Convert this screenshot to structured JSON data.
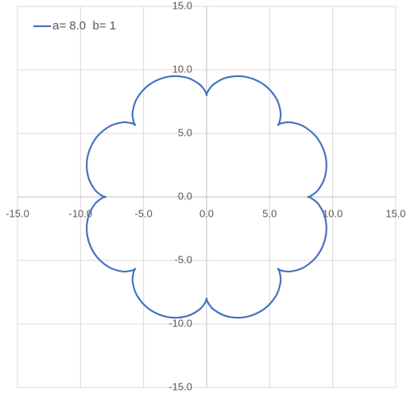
{
  "chart_data": {
    "type": "scatter-line",
    "series": [
      {
        "name": "a= 8.0  b= 1",
        "color": "#4472c4",
        "x": [
          8,
          8.2586,
          8.8633,
          9.4004,
          9.4572,
          8.8639,
          7.7942,
          6.6653,
          5.8944,
          5.6569,
          5.7851,
          5.8693,
          5.5,
          4.5107,
          3.0782,
          1.6223,
          0.5628,
          0.0773,
          0,
          -0.0773,
          -0.5628,
          -1.6223,
          -3.0782,
          -4.5107,
          -5.5,
          -5.8693,
          -5.7851,
          -5.6569,
          -5.8944,
          -6.6653,
          -7.7942,
          -8.8639,
          -9.4572,
          -9.4004,
          -8.8633,
          -8.2586,
          -8,
          -8.2586,
          -8.8633,
          -9.4004,
          -9.4572,
          -8.8639,
          -7.7942,
          -6.6653,
          -5.8944,
          -5.6569,
          -5.7851,
          -5.8693,
          -5.5,
          -4.5107,
          -3.0782,
          -1.6223,
          -0.5628,
          -0.0773,
          0,
          0.0773,
          0.5628,
          1.6223,
          3.0782,
          4.5107,
          5.5,
          5.8693,
          5.7851,
          5.6569,
          5.8944,
          6.6653,
          7.7942,
          8.8639,
          9.4572,
          9.4004,
          8.8633,
          8.2586,
          8
        ],
        "values": [
          0,
          0.0773,
          0.5628,
          1.6223,
          3.0782,
          4.5107,
          5.5,
          5.8693,
          5.7851,
          5.6569,
          5.8944,
          6.6653,
          7.7942,
          8.8639,
          9.4572,
          9.4004,
          8.8633,
          8.2586,
          8,
          8.2586,
          8.8633,
          9.4004,
          9.4572,
          8.8639,
          7.7942,
          6.6653,
          5.8944,
          5.6569,
          5.7851,
          5.8693,
          5.5,
          4.5107,
          3.0782,
          1.6223,
          0.5628,
          0.0773,
          0,
          -0.0773,
          -0.5628,
          -1.6223,
          -3.0782,
          -4.5107,
          -5.5,
          -5.8693,
          -5.7851,
          -5.6569,
          -5.8944,
          -6.6653,
          -7.7942,
          -8.8639,
          -9.4572,
          -9.4004,
          -8.8633,
          -8.2586,
          -8,
          -8.2586,
          -8.8633,
          -9.4004,
          -9.4572,
          -8.8639,
          -7.7942,
          -6.6653,
          -5.8944,
          -5.6569,
          -5.7851,
          -5.8693,
          -5.5,
          -4.5107,
          -3.0782,
          -1.6223,
          -0.5628,
          -0.0773,
          0
        ]
      }
    ],
    "xlim": [
      -15,
      15
    ],
    "ylim": [
      -15,
      15
    ],
    "xticks": [
      {
        "value": -15,
        "label": "-15.0"
      },
      {
        "value": -10,
        "label": "-10.0"
      },
      {
        "value": -5,
        "label": "-5.0"
      },
      {
        "value": 0,
        "label": "0.0"
      },
      {
        "value": 5,
        "label": "5.0"
      },
      {
        "value": 10,
        "label": "10.0"
      },
      {
        "value": 15,
        "label": "15.0"
      }
    ],
    "yticks": [
      {
        "value": -15,
        "label": "-15.0"
      },
      {
        "value": -10,
        "label": "-10.0"
      },
      {
        "value": -5,
        "label": "-5.0"
      },
      {
        "value": 0,
        "label": "0.0"
      },
      {
        "value": 5,
        "label": "5.0"
      },
      {
        "value": 10,
        "label": "10.0"
      },
      {
        "value": 15,
        "label": "15.0"
      }
    ],
    "grid": true,
    "legend": "top-left"
  }
}
